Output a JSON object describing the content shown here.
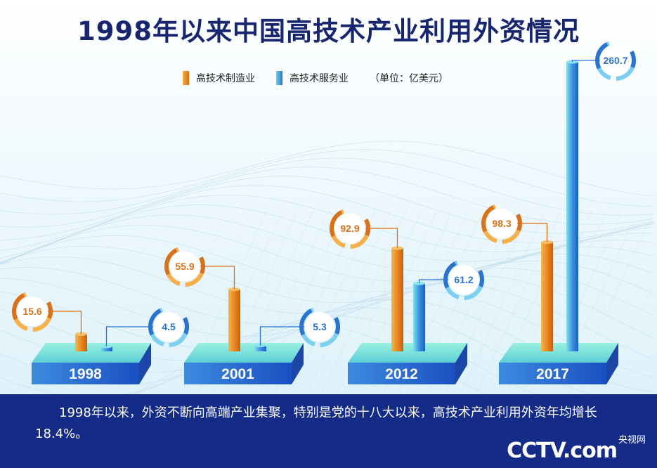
{
  "title": "1998年以来中国高技术产业利用外资情况",
  "legend": {
    "manufacturing": "高技术制造业",
    "services": "高技术服务业",
    "unit": "（单位：亿美元）"
  },
  "colors": {
    "manufacturing": "#e8821e",
    "services": "#2f86d8",
    "title": "#17266e",
    "platform_top": "#7ee3d5",
    "platform_front": "#2a6fd6",
    "footer": "#142b88"
  },
  "chart_data": {
    "type": "bar",
    "title": "1998年以来中国高技术产业利用外资情况",
    "unit": "亿美元",
    "categories": [
      "1998",
      "2001",
      "2012",
      "2017"
    ],
    "series": [
      {
        "name": "高技术制造业",
        "values": [
          15.6,
          55.9,
          92.9,
          98.3
        ]
      },
      {
        "name": "高技术服务业",
        "values": [
          4.5,
          5.3,
          61.2,
          260.7
        ]
      }
    ]
  },
  "footer": {
    "caption": "1998年以来，外资不断向高端产业集聚，特别是党的十八大以来，高技术产业利用外资年均增长18.4%。",
    "logo_main": "CCTV.com",
    "logo_sub": "央视网"
  }
}
